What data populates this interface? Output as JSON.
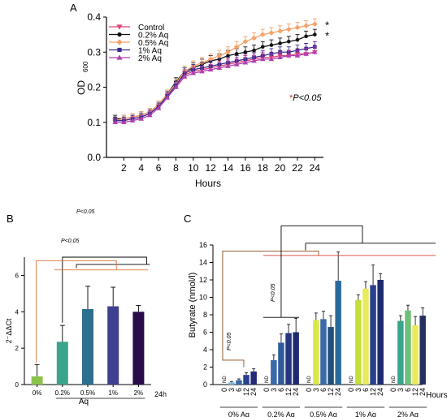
{
  "chart_data": [
    {
      "type": "line",
      "panel_label": "A",
      "xlabel": "Hours",
      "ylabel_main": "OD",
      "ylabel_sub": "600",
      "ylim": [
        0.0,
        0.4
      ],
      "yticks": [
        "0.0",
        "0.1",
        "0.2",
        "0.3",
        "0.4"
      ],
      "xticks": [
        "2",
        "4",
        "6",
        "8",
        "10",
        "12",
        "14",
        "16",
        "18",
        "20",
        "22",
        "24"
      ],
      "annotation_p": "P<0.05",
      "annotation_star": "*",
      "x": [
        1,
        2,
        3,
        4,
        5,
        6,
        7,
        8,
        9,
        10,
        11,
        12,
        13,
        14,
        15,
        16,
        17,
        18,
        19,
        20,
        21,
        22,
        23,
        24
      ],
      "series": [
        {
          "name": "Control",
          "color": "#e0457a",
          "marker": "triangle-down",
          "values": [
            0.105,
            0.105,
            0.11,
            0.115,
            0.125,
            0.145,
            0.175,
            0.205,
            0.235,
            0.245,
            0.25,
            0.255,
            0.26,
            0.265,
            0.27,
            0.275,
            0.28,
            0.285,
            0.285,
            0.29,
            0.29,
            0.295,
            0.295,
            0.3
          ]
        },
        {
          "name": "0.2% Aq",
          "color": "#111111",
          "marker": "circle",
          "values": [
            0.11,
            0.11,
            0.115,
            0.12,
            0.13,
            0.15,
            0.18,
            0.215,
            0.245,
            0.255,
            0.265,
            0.275,
            0.28,
            0.29,
            0.295,
            0.3,
            0.305,
            0.315,
            0.32,
            0.325,
            0.33,
            0.335,
            0.345,
            0.35
          ]
        },
        {
          "name": "0.5% Aq",
          "color": "#f4a26a",
          "marker": "diamond",
          "values": [
            0.105,
            0.11,
            0.115,
            0.12,
            0.13,
            0.15,
            0.18,
            0.21,
            0.245,
            0.26,
            0.27,
            0.28,
            0.29,
            0.3,
            0.315,
            0.33,
            0.34,
            0.35,
            0.355,
            0.36,
            0.365,
            0.37,
            0.375,
            0.38
          ]
        },
        {
          "name": "1% Aq",
          "color": "#3b2a8a",
          "marker": "square",
          "values": [
            0.105,
            0.105,
            0.11,
            0.115,
            0.125,
            0.145,
            0.175,
            0.205,
            0.24,
            0.25,
            0.255,
            0.26,
            0.265,
            0.27,
            0.275,
            0.28,
            0.285,
            0.29,
            0.295,
            0.3,
            0.3,
            0.305,
            0.31,
            0.315
          ]
        },
        {
          "name": "2% Aq",
          "color": "#b040b0",
          "marker": "triangle-up",
          "values": [
            0.1,
            0.1,
            0.105,
            0.11,
            0.12,
            0.14,
            0.17,
            0.2,
            0.23,
            0.24,
            0.245,
            0.25,
            0.255,
            0.26,
            0.265,
            0.27,
            0.275,
            0.28,
            0.28,
            0.285,
            0.29,
            0.29,
            0.295,
            0.3
          ]
        }
      ],
      "error": [
        0.01,
        0.01,
        0.01,
        0.01,
        0.01,
        0.01,
        0.012,
        0.012,
        0.015,
        0.015,
        0.015,
        0.015,
        0.015,
        0.015,
        0.015,
        0.015,
        0.015,
        0.015,
        0.015,
        0.015,
        0.015,
        0.015,
        0.015,
        0.015
      ],
      "star_series": [
        "0.5% Aq",
        "0.2% Aq"
      ],
      "star_color": "#d32f2f"
    },
    {
      "type": "bar",
      "panel_label": "B",
      "ylabel": "2⁻ΔΔCt",
      "categories": [
        "0%",
        "0.2%",
        "0.5%",
        "1%",
        "2%"
      ],
      "values": [
        0.45,
        2.35,
        4.15,
        4.3,
        4.0
      ],
      "errors": [
        0.65,
        0.9,
        1.25,
        1.05,
        0.35
      ],
      "colors": [
        "#8bc34a",
        "#3aa58a",
        "#2e6e8e",
        "#3f3f8f",
        "#2a0a4a"
      ],
      "ylim": [
        0,
        7
      ],
      "yticks": [
        "0",
        "2",
        "4",
        "6"
      ],
      "xlabel": "Aq",
      "time_label": "24h",
      "sig_black": "P<0.05",
      "sig_orange": "P<0.05",
      "sig_orange_color": "#d8743a"
    },
    {
      "type": "bar",
      "panel_label": "C",
      "ylabel": "Butyrate (nmol/l)",
      "ylim": [
        0,
        16
      ],
      "yticks": [
        "0",
        "2",
        "4",
        "6",
        "8",
        "10",
        "12",
        "14",
        "16"
      ],
      "xlabel_right": "Hours",
      "nd_label": "ND",
      "groups": [
        {
          "name": "0% Aq",
          "hours": [
            "0",
            "3",
            "6",
            "12",
            "24"
          ],
          "values": [
            null,
            0.25,
            0.5,
            1.1,
            1.5
          ],
          "errors": [
            0,
            0.1,
            0.15,
            0.25,
            0.3
          ]
        },
        {
          "name": "0.2% Aq",
          "hours": [
            "0",
            "3",
            "6",
            "12",
            "24"
          ],
          "values": [
            null,
            2.8,
            4.8,
            5.9,
            6.0
          ],
          "errors": [
            0,
            0.6,
            1.0,
            1.0,
            1.6
          ]
        },
        {
          "name": "0.5% Aq",
          "hours": [
            "0",
            "3",
            "6",
            "12",
            "24"
          ],
          "values": [
            null,
            7.4,
            7.5,
            6.6,
            11.9
          ],
          "errors": [
            0,
            0.8,
            0.9,
            1.3,
            3.3
          ]
        },
        {
          "name": "1% Aq",
          "hours": [
            "0",
            "3",
            "6",
            "12",
            "24"
          ],
          "values": [
            null,
            9.7,
            11.0,
            11.4,
            12.0
          ],
          "errors": [
            0,
            0.6,
            0.8,
            2.3,
            0.7
          ]
        },
        {
          "name": "2% Aq",
          "hours": [
            "0",
            "3",
            "6",
            "12",
            "24"
          ],
          "values": [
            null,
            7.3,
            8.5,
            6.8,
            7.9
          ],
          "errors": [
            0,
            0.6,
            0.6,
            1.0,
            0.9
          ]
        }
      ],
      "bar_colors": [
        "#ffffff",
        "#5fa8d3",
        "#2f5b9a",
        "#26357e",
        "#1c1a5e"
      ],
      "group_bar_colors": [
        [
          "#ffffff",
          "#7bb7d9",
          "#3a6aa8",
          "#2a3f8e",
          "#232a78"
        ],
        [
          "#ffffff",
          "#3a6aa8",
          "#2f5b9a",
          "#26357e",
          "#1c2a6e"
        ],
        [
          "#ffffff",
          "#d8e84a",
          "#3a6aa8",
          "#1f4f7a",
          "#2a6a9a"
        ],
        [
          "#ffffff",
          "#c6dc3a",
          "#e6ec5a",
          "#2a3f8e",
          "#1c2a6e"
        ],
        [
          "#ffffff",
          "#3aa58a",
          "#6fbf7a",
          "#eaea5a",
          "#263060"
        ]
      ],
      "sig_brown": "P<0.05",
      "sig_black": "P<0.05",
      "sig_brown_color": "#8a4a1a",
      "sig_red_color": "#d8584a"
    }
  ]
}
